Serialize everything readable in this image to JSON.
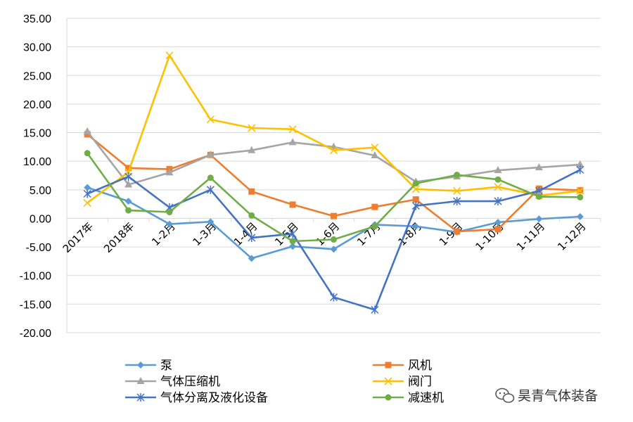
{
  "chart_data": {
    "type": "line",
    "title": "",
    "xlabel": "",
    "ylabel": "",
    "ylim": [
      -20,
      35
    ],
    "yticks": [
      "35.00",
      "30.00",
      "25.00",
      "20.00",
      "15.00",
      "10.00",
      "5.00",
      "0.00",
      "-5.00",
      "-10.00",
      "-15.00",
      "-20.00"
    ],
    "grid": true,
    "legend_position": "bottom",
    "categories": [
      "2017年",
      "2018年",
      "1-2月",
      "1-3月",
      "1-4月",
      "1-5月",
      "1-6月",
      "1-7月",
      "1-8月",
      "1-9月",
      "1-10月",
      "1-11月",
      "1-12月"
    ],
    "series": [
      {
        "name": "泵",
        "color": "#5b9bd5",
        "marker": "diamond",
        "values": [
          5.4,
          3.0,
          -1.0,
          -0.6,
          -7.0,
          -4.9,
          -5.4,
          -1.1,
          -1.4,
          -2.4,
          -0.7,
          -0.1,
          0.3
        ]
      },
      {
        "name": "风机",
        "color": "#ed7d31",
        "marker": "square",
        "values": [
          14.7,
          8.8,
          8.6,
          11.1,
          4.7,
          2.4,
          0.4,
          2.0,
          3.3,
          -2.3,
          -1.9,
          5.2,
          4.9
        ]
      },
      {
        "name": "气体压缩机",
        "color": "#a5a5a5",
        "marker": "triangle",
        "values": [
          15.2,
          5.9,
          8.0,
          11.1,
          11.9,
          13.3,
          12.5,
          11.0,
          6.4,
          7.3,
          8.4,
          8.9,
          9.4
        ]
      },
      {
        "name": "阀门",
        "color": "#ffc000",
        "marker": "x",
        "values": [
          2.7,
          8.1,
          28.5,
          17.3,
          15.8,
          15.6,
          11.9,
          12.4,
          5.1,
          4.8,
          5.5,
          4.0,
          4.8
        ]
      },
      {
        "name": "气体分离及液化设备",
        "color": "#4472c4",
        "marker": "star",
        "values": [
          4.3,
          7.3,
          1.9,
          5.0,
          -3.4,
          -2.7,
          -13.8,
          -16.0,
          2.2,
          3.0,
          3.0,
          4.8,
          8.5
        ]
      },
      {
        "name": "减速机",
        "color": "#70ad47",
        "marker": "circle",
        "values": [
          11.4,
          1.4,
          1.1,
          7.1,
          0.5,
          -4.0,
          -3.7,
          -1.4,
          6.1,
          7.6,
          6.8,
          3.8,
          3.7
        ]
      }
    ]
  },
  "watermark": {
    "text": "昊青气体装备"
  }
}
